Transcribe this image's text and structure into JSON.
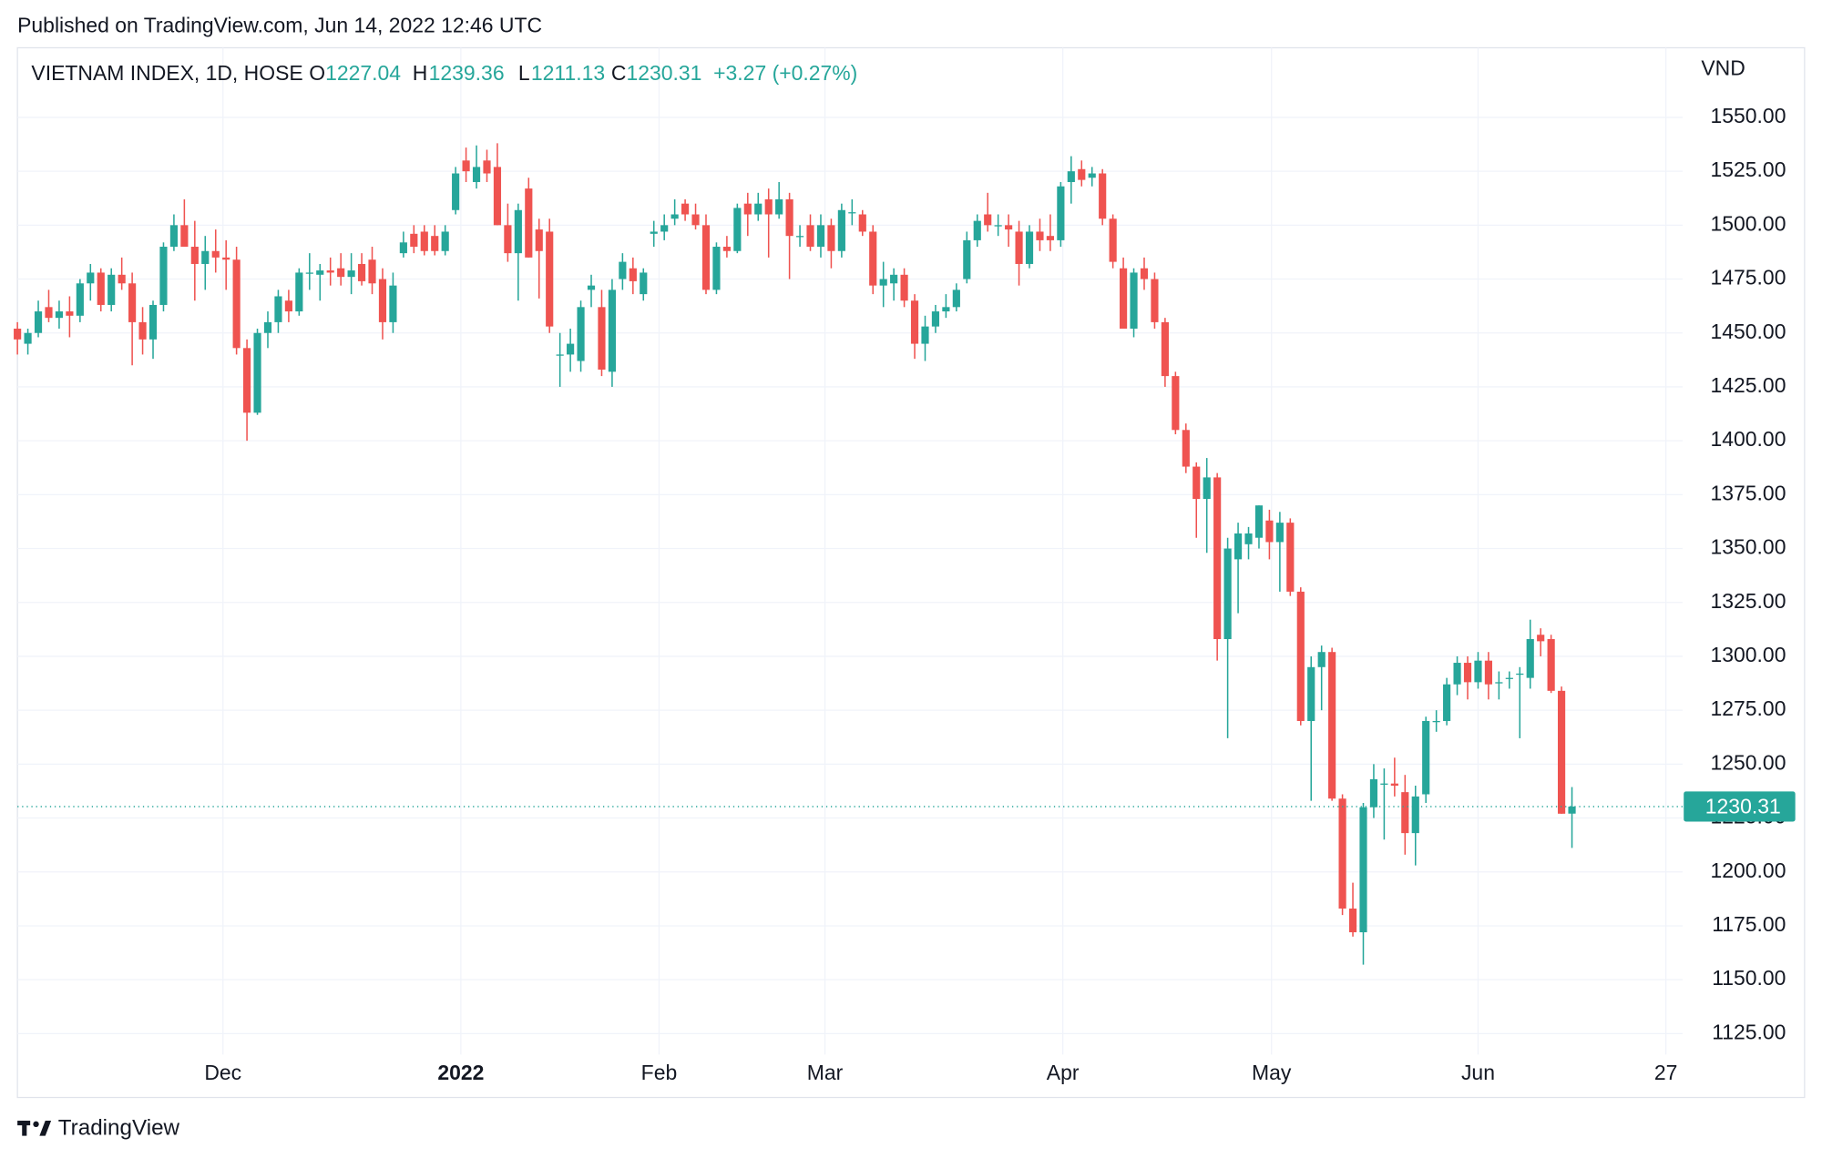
{
  "chart_data": {
    "type": "candlestick",
    "title": "Published on TradingView.com, Jun 14, 2022 12:46 UTC",
    "symbol": "VIETNAM INDEX, 1D, HOSE",
    "ohlc_labels": [
      "O",
      "H",
      "L",
      "C"
    ],
    "change": "+3.27 (+0.27%)",
    "y_axis_label": "VND",
    "brand": "TradingView",
    "up_color": "#26a69a",
    "down_color": "#ef5350",
    "grid": true,
    "xlim": [
      0,
      159.6
    ],
    "ylim": [
      1115.3,
      1582.3
    ],
    "xticks": [
      {
        "value": 19.7,
        "label": "Dec"
      },
      {
        "value": 42.5,
        "label": "2022"
      },
      {
        "value": 61.5,
        "label": "Feb"
      },
      {
        "value": 77.4,
        "label": "Mar"
      },
      {
        "value": 100.2,
        "label": "Apr"
      },
      {
        "value": 120.2,
        "label": "May"
      },
      {
        "value": 140,
        "label": "Jun"
      },
      {
        "value": 158,
        "label": "27"
      }
    ],
    "yticks": [
      {
        "value": 1125,
        "label": "1125.00"
      },
      {
        "value": 1150,
        "label": "1150.00"
      },
      {
        "value": 1175,
        "label": "1175.00"
      },
      {
        "value": 1200,
        "label": "1200.00"
      },
      {
        "value": 1225,
        "label": "1225.00"
      },
      {
        "value": 1250,
        "label": "1250.00"
      },
      {
        "value": 1275,
        "label": "1275.00"
      },
      {
        "value": 1300,
        "label": "1300.00"
      },
      {
        "value": 1325,
        "label": "1325.00"
      },
      {
        "value": 1350,
        "label": "1350.00"
      },
      {
        "value": 1375,
        "label": "1375.00"
      },
      {
        "value": 1400,
        "label": "1400.00"
      },
      {
        "value": 1425,
        "label": "1425.00"
      },
      {
        "value": 1450,
        "label": "1450.00"
      },
      {
        "value": 1475,
        "label": "1475.00"
      },
      {
        "value": 1500,
        "label": "1500.00"
      },
      {
        "value": 1525,
        "label": "1525.00"
      },
      {
        "value": 1550,
        "label": "1550.00"
      }
    ],
    "ohlc": [
      [
        1452,
        1455,
        1440,
        1447
      ],
      [
        1445,
        1452,
        1440,
        1450
      ],
      [
        1450,
        1465,
        1448,
        1460
      ],
      [
        1462,
        1470,
        1455,
        1457
      ],
      [
        1457,
        1465,
        1452,
        1460
      ],
      [
        1460,
        1467,
        1448,
        1458
      ],
      [
        1458,
        1475,
        1455,
        1473
      ],
      [
        1473,
        1482,
        1465,
        1478
      ],
      [
        1478,
        1480,
        1460,
        1463
      ],
      [
        1463,
        1480,
        1460,
        1477
      ],
      [
        1477,
        1485,
        1470,
        1473
      ],
      [
        1473,
        1478,
        1435,
        1455
      ],
      [
        1455,
        1462,
        1440,
        1447
      ],
      [
        1447,
        1465,
        1438,
        1463
      ],
      [
        1463,
        1492,
        1460,
        1490
      ],
      [
        1490,
        1505,
        1488,
        1500
      ],
      [
        1500,
        1512,
        1490,
        1490
      ],
      [
        1490,
        1502,
        1465,
        1482
      ],
      [
        1482,
        1495,
        1470,
        1488
      ],
      [
        1488,
        1498,
        1478,
        1485
      ],
      [
        1485,
        1493,
        1470,
        1484
      ],
      [
        1484,
        1490,
        1440,
        1443
      ],
      [
        1443,
        1447,
        1400,
        1413
      ],
      [
        1413,
        1452,
        1412,
        1450
      ],
      [
        1450,
        1460,
        1443,
        1455
      ],
      [
        1455,
        1470,
        1450,
        1467
      ],
      [
        1465,
        1470,
        1455,
        1460
      ],
      [
        1460,
        1480,
        1458,
        1478
      ],
      [
        1478,
        1487,
        1470,
        1478
      ],
      [
        1477,
        1482,
        1465,
        1479
      ],
      [
        1479,
        1485,
        1472,
        1478
      ],
      [
        1480,
        1487,
        1472,
        1476
      ],
      [
        1476,
        1487,
        1468,
        1479
      ],
      [
        1482,
        1487,
        1472,
        1474
      ],
      [
        1484,
        1490,
        1468,
        1473
      ],
      [
        1475,
        1480,
        1447,
        1455
      ],
      [
        1455,
        1478,
        1450,
        1472
      ],
      [
        1487,
        1497,
        1485,
        1492
      ],
      [
        1496,
        1500,
        1487,
        1490
      ],
      [
        1497,
        1500,
        1486,
        1488
      ],
      [
        1495,
        1500,
        1486,
        1488
      ],
      [
        1488,
        1500,
        1486,
        1497
      ],
      [
        1507,
        1527,
        1505,
        1524
      ],
      [
        1530,
        1536,
        1520,
        1525
      ],
      [
        1520,
        1537,
        1517,
        1527
      ],
      [
        1530,
        1535,
        1520,
        1524
      ],
      [
        1527,
        1538,
        1500,
        1500
      ],
      [
        1500,
        1510,
        1483,
        1487
      ],
      [
        1487,
        1510,
        1465,
        1507
      ],
      [
        1517,
        1522,
        1485,
        1485
      ],
      [
        1498,
        1503,
        1466,
        1488
      ],
      [
        1497,
        1503,
        1450,
        1453
      ],
      [
        1440,
        1450,
        1425,
        1440
      ],
      [
        1440,
        1452,
        1432,
        1445
      ],
      [
        1437,
        1465,
        1432,
        1462
      ],
      [
        1470,
        1477,
        1462,
        1472
      ],
      [
        1462,
        1470,
        1430,
        1433
      ],
      [
        1432,
        1475,
        1425,
        1470
      ],
      [
        1475,
        1487,
        1470,
        1483
      ],
      [
        1480,
        1485,
        1468,
        1474
      ],
      [
        1468,
        1480,
        1465,
        1478
      ],
      [
        1496,
        1502,
        1490,
        1497
      ],
      [
        1497,
        1505,
        1493,
        1500
      ],
      [
        1503,
        1512,
        1500,
        1505
      ],
      [
        1510,
        1512,
        1502,
        1505
      ],
      [
        1505,
        1510,
        1498,
        1500
      ],
      [
        1500,
        1505,
        1468,
        1470
      ],
      [
        1470,
        1492,
        1468,
        1490
      ],
      [
        1490,
        1495,
        1485,
        1488
      ],
      [
        1488,
        1510,
        1487,
        1508
      ],
      [
        1510,
        1515,
        1495,
        1505
      ],
      [
        1505,
        1515,
        1502,
        1510
      ],
      [
        1512,
        1517,
        1485,
        1505
      ],
      [
        1505,
        1520,
        1503,
        1512
      ],
      [
        1512,
        1515,
        1475,
        1495
      ],
      [
        1495,
        1500,
        1490,
        1495
      ],
      [
        1500,
        1505,
        1488,
        1490
      ],
      [
        1490,
        1505,
        1485,
        1500
      ],
      [
        1500,
        1503,
        1480,
        1488
      ],
      [
        1488,
        1510,
        1485,
        1507
      ],
      [
        1506,
        1512,
        1500,
        1506
      ],
      [
        1505,
        1507,
        1495,
        1497
      ],
      [
        1497,
        1500,
        1468,
        1472
      ],
      [
        1472,
        1483,
        1462,
        1475
      ],
      [
        1473,
        1480,
        1465,
        1477
      ],
      [
        1477,
        1480,
        1462,
        1465
      ],
      [
        1465,
        1468,
        1438,
        1445
      ],
      [
        1445,
        1458,
        1437,
        1453
      ],
      [
        1453,
        1463,
        1450,
        1460
      ],
      [
        1460,
        1468,
        1457,
        1462
      ],
      [
        1462,
        1473,
        1460,
        1470
      ],
      [
        1475,
        1497,
        1473,
        1493
      ],
      [
        1493,
        1505,
        1490,
        1502
      ],
      [
        1505,
        1515,
        1497,
        1500
      ],
      [
        1500,
        1505,
        1495,
        1500
      ],
      [
        1500,
        1505,
        1490,
        1498
      ],
      [
        1497,
        1502,
        1472,
        1482
      ],
      [
        1482,
        1500,
        1480,
        1497
      ],
      [
        1497,
        1503,
        1488,
        1493
      ],
      [
        1495,
        1505,
        1488,
        1493
      ],
      [
        1493,
        1520,
        1490,
        1518
      ],
      [
        1520,
        1532,
        1510,
        1525
      ],
      [
        1526,
        1530,
        1518,
        1521
      ],
      [
        1522,
        1527,
        1518,
        1524
      ],
      [
        1524,
        1526,
        1500,
        1503
      ],
      [
        1503,
        1505,
        1480,
        1483
      ],
      [
        1480,
        1485,
        1452,
        1452
      ],
      [
        1452,
        1480,
        1448,
        1478
      ],
      [
        1480,
        1485,
        1470,
        1475
      ],
      [
        1475,
        1478,
        1452,
        1455
      ],
      [
        1455,
        1457,
        1425,
        1430
      ],
      [
        1430,
        1432,
        1403,
        1405
      ],
      [
        1405,
        1408,
        1385,
        1388
      ],
      [
        1388,
        1390,
        1355,
        1373
      ],
      [
        1373,
        1392,
        1348,
        1383
      ],
      [
        1383,
        1385,
        1298,
        1308
      ],
      [
        1308,
        1355,
        1262,
        1350
      ],
      [
        1345,
        1362,
        1320,
        1357
      ],
      [
        1352,
        1360,
        1345,
        1357
      ],
      [
        1355,
        1370,
        1350,
        1370
      ],
      [
        1363,
        1368,
        1345,
        1353
      ],
      [
        1353,
        1367,
        1330,
        1362
      ],
      [
        1362,
        1364,
        1328,
        1330
      ],
      [
        1330,
        1332,
        1268,
        1270
      ],
      [
        1270,
        1300,
        1233,
        1295
      ],
      [
        1295,
        1305,
        1275,
        1302
      ],
      [
        1302,
        1304,
        1233,
        1234
      ],
      [
        1234,
        1236,
        1180,
        1183
      ],
      [
        1183,
        1195,
        1170,
        1172
      ],
      [
        1172,
        1232,
        1157,
        1230
      ],
      [
        1230,
        1250,
        1225,
        1243
      ],
      [
        1241,
        1248,
        1215,
        1241
      ],
      [
        1241,
        1253,
        1235,
        1240
      ],
      [
        1237,
        1245,
        1208,
        1218
      ],
      [
        1218,
        1240,
        1203,
        1235
      ],
      [
        1236,
        1272,
        1232,
        1270
      ],
      [
        1270,
        1275,
        1265,
        1270
      ],
      [
        1270,
        1290,
        1268,
        1287
      ],
      [
        1287,
        1300,
        1282,
        1297
      ],
      [
        1297,
        1300,
        1280,
        1288
      ],
      [
        1288,
        1302,
        1285,
        1298
      ],
      [
        1298,
        1302,
        1280,
        1287
      ],
      [
        1288,
        1293,
        1280,
        1288
      ],
      [
        1290,
        1293,
        1285,
        1290
      ],
      [
        1292,
        1295,
        1262,
        1292
      ],
      [
        1290,
        1317,
        1285,
        1308
      ],
      [
        1310,
        1313,
        1300,
        1307
      ],
      [
        1308,
        1310,
        1283,
        1284
      ],
      [
        1284,
        1286,
        1227,
        1227
      ],
      [
        1227.04,
        1239.36,
        1211.13,
        1230.31
      ]
    ]
  }
}
